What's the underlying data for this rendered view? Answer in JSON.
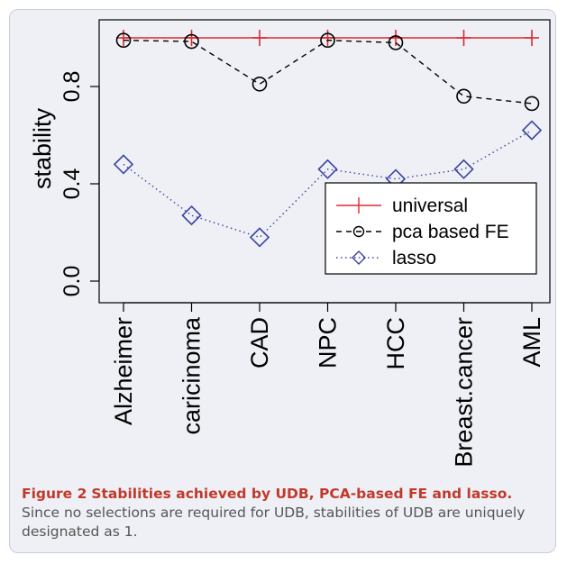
{
  "figure": {
    "label": "Figure 2",
    "title": "Stabilities achieved by UDB, PCA-based FE and lasso.",
    "text": "Since no selections are required for UDB, stabilities of UDB are uniquely designated as 1."
  },
  "chart_data": {
    "type": "line",
    "ylabel": "stability",
    "ylim": [
      0,
      1
    ],
    "yticks": [
      "0.0",
      "0.4",
      "0.8"
    ],
    "ytick_values": [
      0,
      0.4,
      0.8
    ],
    "categories": [
      "Alzheimer",
      "caricinoma",
      "CAD",
      "NPC",
      "HCC",
      "Breast.cancer",
      "AML"
    ],
    "legend_position": "bottom-right",
    "series": [
      {
        "name": "universal",
        "values": [
          1,
          1,
          1,
          1,
          1,
          1,
          1
        ],
        "color": "#e0282e",
        "marker": "plus",
        "line": "solid"
      },
      {
        "name": "pca based FE",
        "values": [
          0.99,
          0.985,
          0.81,
          0.99,
          0.98,
          0.76,
          0.73
        ],
        "color": "#000000",
        "marker": "circle",
        "line": "dashed"
      },
      {
        "name": "lasso",
        "values": [
          0.48,
          0.27,
          0.18,
          0.46,
          0.42,
          0.46,
          0.62
        ],
        "color": "#3a43a0",
        "marker": "diamond",
        "line": "dotted"
      }
    ]
  }
}
